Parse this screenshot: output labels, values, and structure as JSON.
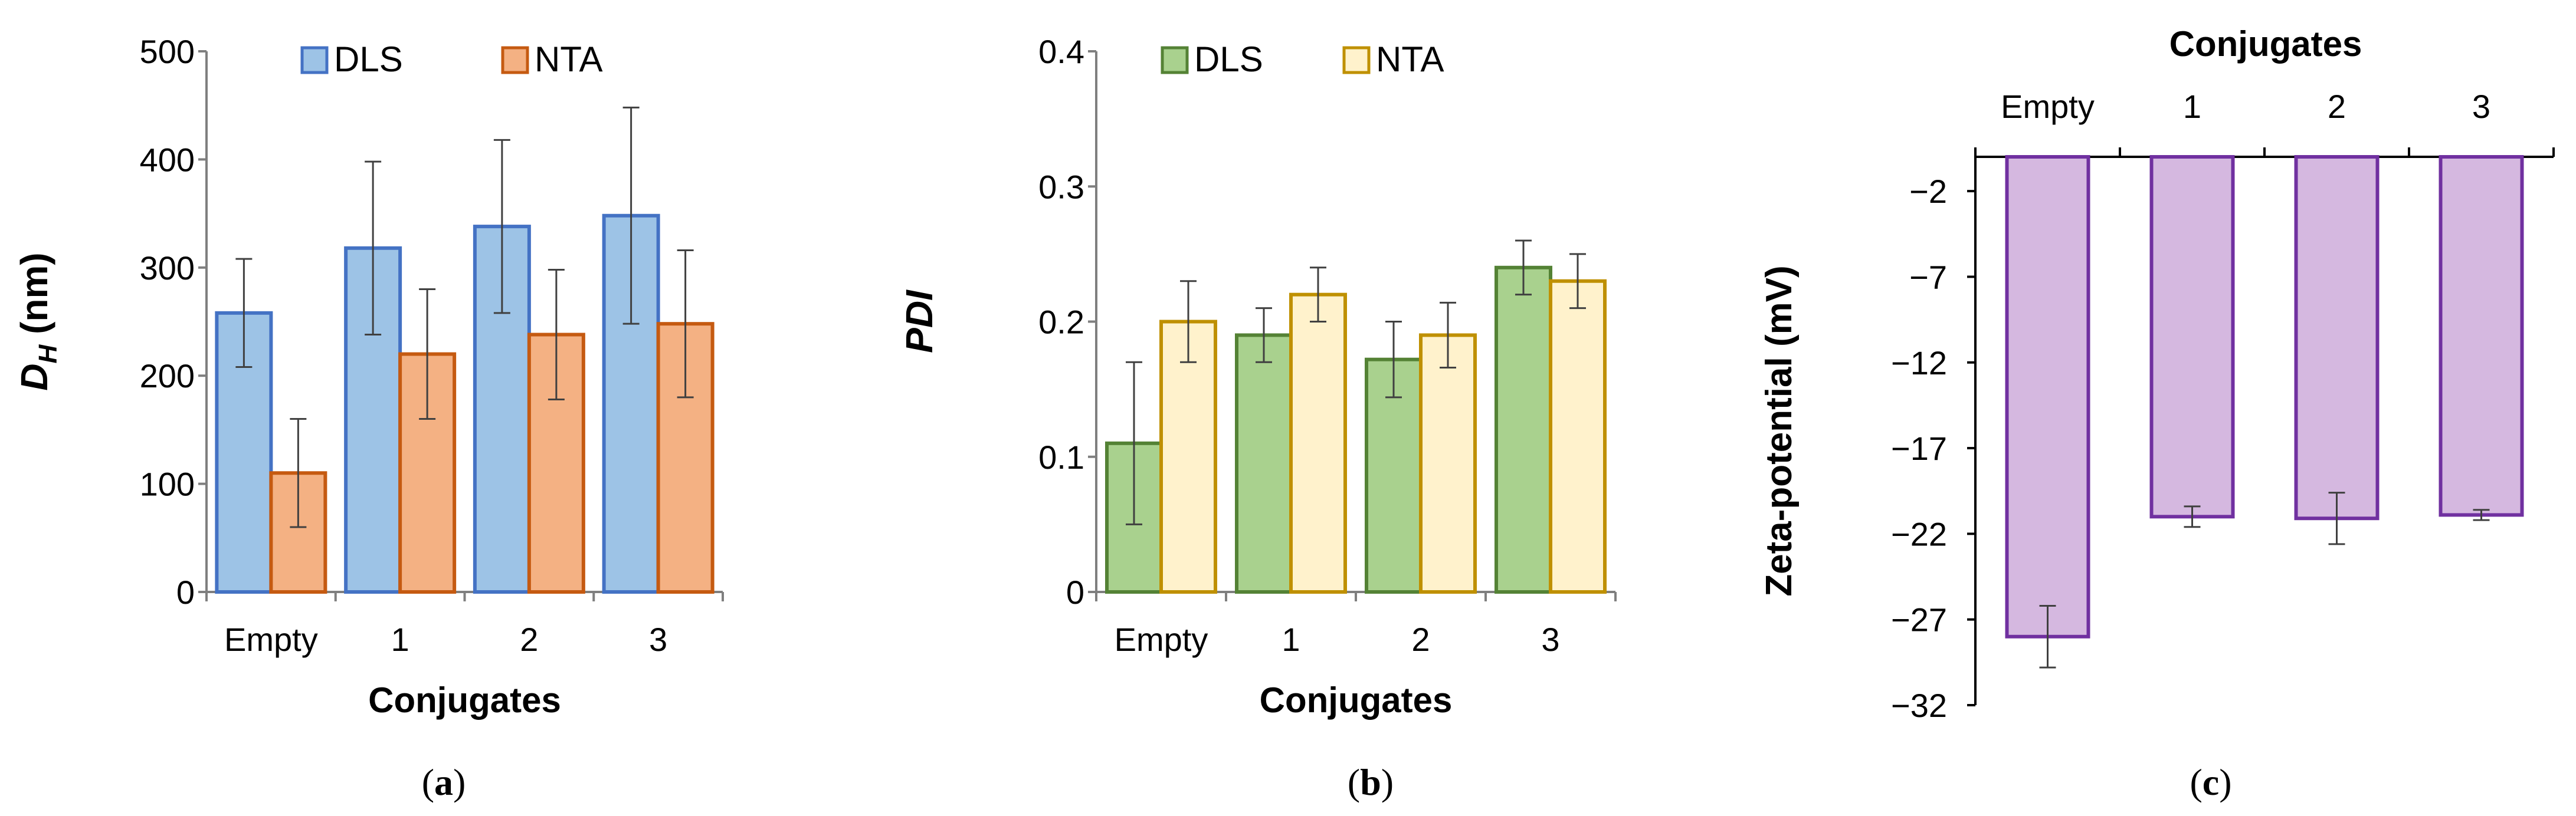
{
  "figure": {
    "panels": [
      {
        "label_open": "(",
        "label_letter": "a",
        "label_close": ")"
      },
      {
        "label_open": "(",
        "label_letter": "b",
        "label_close": ")"
      },
      {
        "label_open": "(",
        "label_letter": "c",
        "label_close": ")"
      }
    ]
  },
  "chart_data": [
    {
      "type": "bar",
      "ylabel_main": "D",
      "ylabel_sub": "H",
      "ylabel_unit": " (nm)",
      "xlabel": "Conjugates",
      "categories": [
        "Empty",
        "1",
        "2",
        "3"
      ],
      "ylim": [
        0,
        500
      ],
      "yticks": [
        0,
        100,
        200,
        300,
        400,
        500
      ],
      "ytick_labels": [
        "0",
        "100",
        "200",
        "300",
        "400",
        "500"
      ],
      "grid": false,
      "legend_position": "top",
      "series": [
        {
          "name": "DLS",
          "fill": "#9dc3e6",
          "stroke": "#4472c4",
          "values": [
            258,
            318,
            338,
            348
          ],
          "errors": [
            50,
            80,
            80,
            100
          ]
        },
        {
          "name": "NTA",
          "fill": "#f4b183",
          "stroke": "#c55a11",
          "values": [
            110,
            220,
            238,
            248
          ],
          "errors": [
            50,
            60,
            60,
            68
          ]
        }
      ]
    },
    {
      "type": "bar",
      "ylabel": "PDI",
      "xlabel": "Conjugates",
      "categories": [
        "Empty",
        "1",
        "2",
        "3"
      ],
      "ylim": [
        0,
        0.4
      ],
      "yticks": [
        0,
        0.1,
        0.2,
        0.3,
        0.4
      ],
      "ytick_labels": [
        "0",
        "0.1",
        "0.2",
        "0.3",
        "0.4"
      ],
      "grid": false,
      "legend_position": "top",
      "series": [
        {
          "name": "DLS",
          "fill": "#a9d18e",
          "stroke": "#548235",
          "values": [
            0.11,
            0.19,
            0.172,
            0.24
          ],
          "errors": [
            0.06,
            0.02,
            0.028,
            0.02
          ]
        },
        {
          "name": "NTA",
          "fill": "#fff2cc",
          "stroke": "#bf9000",
          "values": [
            0.2,
            0.22,
            0.19,
            0.23
          ],
          "errors": [
            0.03,
            0.02,
            0.024,
            0.02
          ]
        }
      ]
    },
    {
      "type": "bar",
      "ylabel": "Zeta-potential (mV)",
      "xlabel": "Conjugates",
      "xlabel_position": "top",
      "categories": [
        "Empty",
        "1",
        "2",
        "3"
      ],
      "ylim": [
        -32,
        0
      ],
      "yticks": [
        -2,
        -7,
        -12,
        -17,
        -22,
        -27,
        -32
      ],
      "ytick_labels": [
        "−2",
        "−7",
        "−12",
        "−17",
        "−22",
        "−27",
        "−32"
      ],
      "grid": false,
      "series": [
        {
          "name": "Zeta-potential",
          "fill": "#d5b8e0",
          "stroke": "#7030a0",
          "values": [
            -28,
            -21,
            -21.1,
            -20.9
          ],
          "errors": [
            1.8,
            0.6,
            1.5,
            0.3
          ]
        }
      ]
    }
  ]
}
